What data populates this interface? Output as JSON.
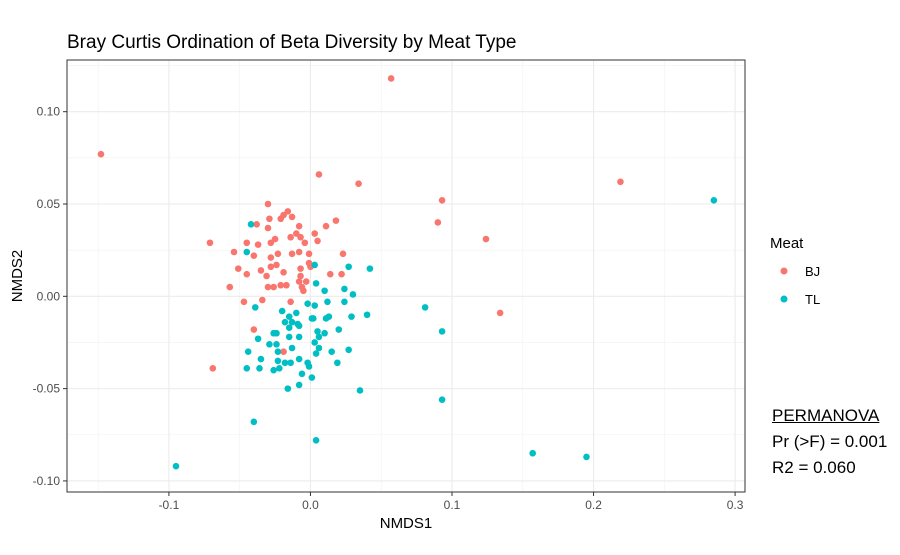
{
  "chart_data": {
    "type": "scatter",
    "title": "Bray Curtis Ordination of Beta Diversity by Meat Type",
    "xlabel": "NMDS1",
    "ylabel": "NMDS2",
    "xlim": [
      -0.172,
      0.307
    ],
    "ylim": [
      -0.106,
      0.128
    ],
    "xticks": [
      -0.1,
      0.0,
      0.1,
      0.2,
      0.3
    ],
    "xtick_labels": [
      "-0.1",
      "0.0",
      "0.1",
      "0.2",
      "0.3"
    ],
    "yticks": [
      -0.1,
      -0.05,
      0.0,
      0.05,
      0.1
    ],
    "ytick_labels": [
      "-0.10",
      "-0.05",
      "0.00",
      "0.05",
      "0.10"
    ],
    "grid": true,
    "legend": {
      "title": "Meat",
      "placement": "right"
    },
    "series": [
      {
        "name": "BJ",
        "color": "#F8766D",
        "points": [
          [
            -0.148,
            0.077
          ],
          [
            0.057,
            0.118
          ],
          [
            0.006,
            0.066
          ],
          [
            0.034,
            0.061
          ],
          [
            0.093,
            0.052
          ],
          [
            0.09,
            0.04
          ],
          [
            0.124,
            0.031
          ],
          [
            0.134,
            -0.009
          ],
          [
            0.219,
            0.062
          ],
          [
            -0.069,
            -0.039
          ],
          [
            -0.071,
            0.029
          ],
          [
            -0.03,
            0.05
          ],
          [
            -0.021,
            0.042
          ],
          [
            -0.016,
            0.046
          ],
          [
            -0.019,
            0.044
          ],
          [
            -0.013,
            0.043
          ],
          [
            -0.029,
            0.042
          ],
          [
            -0.038,
            0.039
          ],
          [
            -0.03,
            0.037
          ],
          [
            -0.008,
            0.038
          ],
          [
            0.011,
            0.038
          ],
          [
            0.018,
            0.041
          ],
          [
            -0.045,
            0.029
          ],
          [
            -0.037,
            0.028
          ],
          [
            -0.028,
            0.029
          ],
          [
            -0.025,
            0.031
          ],
          [
            -0.014,
            0.032
          ],
          [
            -0.01,
            0.034
          ],
          [
            -0.007,
            0.032
          ],
          [
            -0.004,
            0.029
          ],
          [
            0.003,
            0.034
          ],
          [
            0.005,
            0.03
          ],
          [
            -0.054,
            0.024
          ],
          [
            -0.04,
            0.022
          ],
          [
            -0.023,
            0.023
          ],
          [
            -0.028,
            0.021
          ],
          [
            -0.013,
            0.023
          ],
          [
            -0.008,
            0.024
          ],
          [
            -0.001,
            0.023
          ],
          [
            0.023,
            0.023
          ],
          [
            -0.051,
            0.015
          ],
          [
            -0.045,
            0.012
          ],
          [
            -0.035,
            0.014
          ],
          [
            -0.031,
            0.011
          ],
          [
            -0.028,
            0.016
          ],
          [
            -0.024,
            0.017
          ],
          [
            -0.019,
            0.013
          ],
          [
            -0.007,
            0.015
          ],
          [
            -0.001,
            0.018
          ],
          [
            0.0,
            0.016
          ],
          [
            0.014,
            0.012
          ],
          [
            0.022,
            0.012
          ],
          [
            -0.007,
            0.011
          ],
          [
            -0.008,
            0.008
          ],
          [
            -0.003,
            0.008
          ],
          [
            -0.006,
            0.005
          ],
          [
            -0.057,
            0.005
          ],
          [
            -0.03,
            0.005
          ],
          [
            -0.026,
            0.005
          ],
          [
            -0.021,
            0.006
          ],
          [
            -0.017,
            0.006
          ],
          [
            -0.005,
            0.003
          ],
          [
            -0.047,
            -0.003
          ],
          [
            -0.034,
            -0.002
          ],
          [
            -0.014,
            -0.003
          ],
          [
            -0.04,
            -0.018
          ],
          [
            -0.019,
            -0.03
          ]
        ]
      },
      {
        "name": "TL",
        "color": "#00BFC4",
        "points": [
          [
            0.285,
            0.052
          ],
          [
            -0.095,
            -0.092
          ],
          [
            -0.04,
            -0.068
          ],
          [
            0.004,
            -0.078
          ],
          [
            0.093,
            -0.056
          ],
          [
            0.157,
            -0.085
          ],
          [
            0.195,
            -0.087
          ],
          [
            0.093,
            -0.019
          ],
          [
            0.081,
            -0.006
          ],
          [
            0.04,
            -0.01
          ],
          [
            0.035,
            -0.051
          ],
          [
            -0.042,
            0.039
          ],
          [
            -0.045,
            0.024
          ],
          [
            0.003,
            0.017
          ],
          [
            0.027,
            0.016
          ],
          [
            0.042,
            0.015
          ],
          [
            0.004,
            0.007
          ],
          [
            0.024,
            0.004
          ],
          [
            0.01,
            0.003
          ],
          [
            0.03,
            0.001
          ],
          [
            -0.002,
            -0.004
          ],
          [
            0.003,
            -0.005
          ],
          [
            0.012,
            -0.003
          ],
          [
            0.024,
            -0.003
          ],
          [
            -0.039,
            -0.006
          ],
          [
            -0.02,
            -0.008
          ],
          [
            -0.01,
            -0.009
          ],
          [
            -0.015,
            -0.011
          ],
          [
            -0.018,
            -0.014
          ],
          [
            -0.013,
            -0.014
          ],
          [
            -0.009,
            -0.015
          ],
          [
            -0.008,
            -0.016
          ],
          [
            0.001,
            -0.012
          ],
          [
            0.002,
            -0.012
          ],
          [
            0.011,
            -0.012
          ],
          [
            0.013,
            -0.011
          ],
          [
            0.029,
            -0.011
          ],
          [
            -0.015,
            -0.017
          ],
          [
            0.02,
            -0.018
          ],
          [
            -0.026,
            -0.02
          ],
          [
            -0.024,
            -0.02
          ],
          [
            -0.015,
            -0.022
          ],
          [
            -0.008,
            -0.022
          ],
          [
            0.005,
            -0.019
          ],
          [
            0.006,
            -0.022
          ],
          [
            0.01,
            -0.02
          ],
          [
            -0.037,
            -0.023
          ],
          [
            0.003,
            -0.025
          ],
          [
            -0.029,
            -0.026
          ],
          [
            -0.024,
            -0.026
          ],
          [
            -0.013,
            -0.028
          ],
          [
            0.006,
            -0.028
          ],
          [
            -0.044,
            -0.03
          ],
          [
            -0.023,
            -0.03
          ],
          [
            0.015,
            -0.03
          ],
          [
            0.027,
            -0.029
          ],
          [
            0.004,
            -0.031
          ],
          [
            -0.035,
            -0.034
          ],
          [
            -0.023,
            -0.035
          ],
          [
            -0.018,
            -0.036
          ],
          [
            -0.014,
            -0.036
          ],
          [
            -0.008,
            -0.034
          ],
          [
            -0.002,
            -0.036
          ],
          [
            -0.001,
            -0.038
          ],
          [
            0.019,
            -0.036
          ],
          [
            -0.036,
            -0.039
          ],
          [
            -0.026,
            -0.04
          ],
          [
            -0.022,
            -0.039
          ],
          [
            -0.006,
            -0.042
          ],
          [
            0.001,
            -0.044
          ],
          [
            -0.008,
            -0.048
          ],
          [
            -0.016,
            -0.05
          ],
          [
            -0.045,
            -0.039
          ]
        ]
      }
    ],
    "annotations": {
      "heading": "PERMANOVA",
      "line1": "Pr (>F) =  0.001",
      "line2": "R2 = 0.060"
    }
  }
}
